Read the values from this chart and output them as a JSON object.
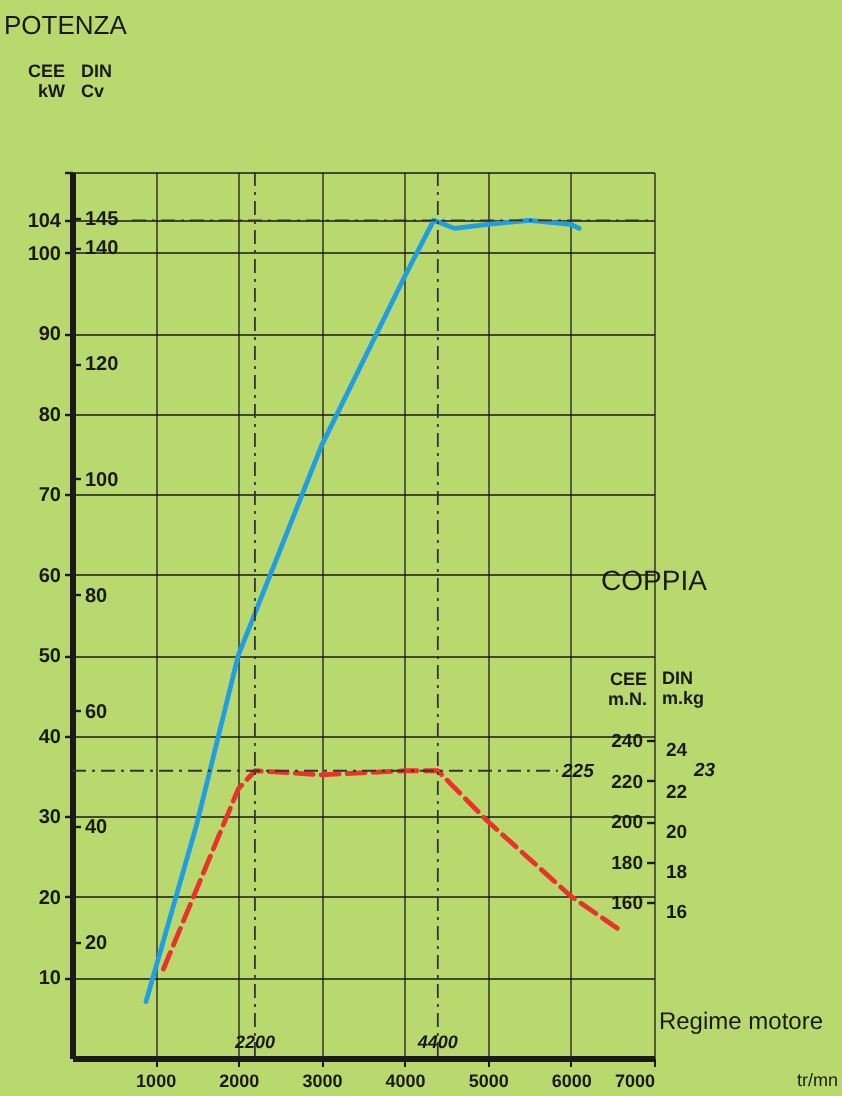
{
  "chart_data": {
    "type": "line",
    "title": "POTENZA",
    "xlabel": "Regime motore",
    "ylabel": "CEE kW",
    "y2label": "DIN Cv",
    "y3label": "CEE m.N.",
    "annotations": [
      "COPPIA",
      "tr/mn",
      "DIN m.kg",
      "24",
      "23",
      "22",
      "20",
      "18",
      "16"
    ],
    "xlim": [
      0,
      7000
    ],
    "xticks": [
      1000,
      2000,
      3000,
      4000,
      5000,
      6000,
      7000
    ],
    "ylim": [
      0,
      110
    ],
    "yticks": [
      10,
      20,
      30,
      40,
      50,
      60,
      70,
      80,
      90,
      100,
      104,
      {
        "value": 110,
        "label": null
      }
    ],
    "y2lim": [
      0,
      153
    ],
    "y2ticks": [
      20,
      40,
      60,
      80,
      100,
      120,
      140,
      145
    ],
    "y3lim": [
      83,
      521
    ],
    "y3ticks": [
      160,
      180,
      200,
      220,
      240
    ],
    "grid": true,
    "series": [
      {
        "color": "#1f9ee3",
        "axis": "y",
        "x": [
          890,
          1500,
          2000,
          3000,
          4000,
          4350,
          4600,
          5000,
          5500,
          6000,
          6100
        ],
        "values": [
          7,
          29,
          50,
          76,
          97,
          104,
          103,
          103.5,
          104,
          103.5,
          103
        ]
      },
      {
        "color": "#e8322a",
        "axis": "y3",
        "line_style": "dashed",
        "x": [
          1100,
          2000,
          2200,
          3000,
          4000,
          4400,
          5000,
          6000,
          6600
        ],
        "values": [
          127,
          216,
          225,
          223,
          225,
          225,
          200,
          163,
          146
        ]
      }
    ],
    "ref_lines": [
      {
        "axis": "x",
        "value": 2200,
        "label": "2200",
        "color": "#333333",
        "line_style": "dashed"
      },
      {
        "axis": "x",
        "value": 4400,
        "label": "4400",
        "color": "#333333",
        "line_style": "dashed"
      },
      {
        "axis": "y",
        "value": 104,
        "color": "#333333",
        "line_style": "dashed"
      },
      {
        "axis": "y3",
        "value": 225,
        "label": "225",
        "color": "#333333",
        "line_style": "dashed"
      }
    ]
  }
}
